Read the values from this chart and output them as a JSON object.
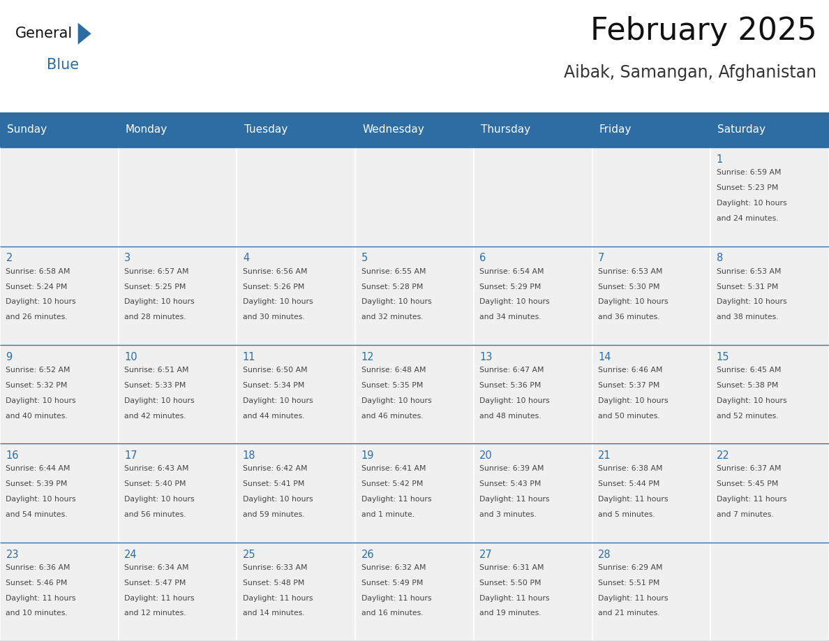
{
  "title": "February 2025",
  "subtitle": "Aibak, Samangan, Afghanistan",
  "header_color": "#2E6DA4",
  "header_text_color": "#FFFFFF",
  "cell_bg_color": "#F0F0F0",
  "border_color": "#2E6DA4",
  "day_number_color": "#2E6DA4",
  "text_color": "#444444",
  "days_of_week": [
    "Sunday",
    "Monday",
    "Tuesday",
    "Wednesday",
    "Thursday",
    "Friday",
    "Saturday"
  ],
  "weeks": [
    [
      {
        "day": "",
        "info": ""
      },
      {
        "day": "",
        "info": ""
      },
      {
        "day": "",
        "info": ""
      },
      {
        "day": "",
        "info": ""
      },
      {
        "day": "",
        "info": ""
      },
      {
        "day": "",
        "info": ""
      },
      {
        "day": "1",
        "info": "Sunrise: 6:59 AM\nSunset: 5:23 PM\nDaylight: 10 hours\nand 24 minutes."
      }
    ],
    [
      {
        "day": "2",
        "info": "Sunrise: 6:58 AM\nSunset: 5:24 PM\nDaylight: 10 hours\nand 26 minutes."
      },
      {
        "day": "3",
        "info": "Sunrise: 6:57 AM\nSunset: 5:25 PM\nDaylight: 10 hours\nand 28 minutes."
      },
      {
        "day": "4",
        "info": "Sunrise: 6:56 AM\nSunset: 5:26 PM\nDaylight: 10 hours\nand 30 minutes."
      },
      {
        "day": "5",
        "info": "Sunrise: 6:55 AM\nSunset: 5:28 PM\nDaylight: 10 hours\nand 32 minutes."
      },
      {
        "day": "6",
        "info": "Sunrise: 6:54 AM\nSunset: 5:29 PM\nDaylight: 10 hours\nand 34 minutes."
      },
      {
        "day": "7",
        "info": "Sunrise: 6:53 AM\nSunset: 5:30 PM\nDaylight: 10 hours\nand 36 minutes."
      },
      {
        "day": "8",
        "info": "Sunrise: 6:53 AM\nSunset: 5:31 PM\nDaylight: 10 hours\nand 38 minutes."
      }
    ],
    [
      {
        "day": "9",
        "info": "Sunrise: 6:52 AM\nSunset: 5:32 PM\nDaylight: 10 hours\nand 40 minutes."
      },
      {
        "day": "10",
        "info": "Sunrise: 6:51 AM\nSunset: 5:33 PM\nDaylight: 10 hours\nand 42 minutes."
      },
      {
        "day": "11",
        "info": "Sunrise: 6:50 AM\nSunset: 5:34 PM\nDaylight: 10 hours\nand 44 minutes."
      },
      {
        "day": "12",
        "info": "Sunrise: 6:48 AM\nSunset: 5:35 PM\nDaylight: 10 hours\nand 46 minutes."
      },
      {
        "day": "13",
        "info": "Sunrise: 6:47 AM\nSunset: 5:36 PM\nDaylight: 10 hours\nand 48 minutes."
      },
      {
        "day": "14",
        "info": "Sunrise: 6:46 AM\nSunset: 5:37 PM\nDaylight: 10 hours\nand 50 minutes."
      },
      {
        "day": "15",
        "info": "Sunrise: 6:45 AM\nSunset: 5:38 PM\nDaylight: 10 hours\nand 52 minutes."
      }
    ],
    [
      {
        "day": "16",
        "info": "Sunrise: 6:44 AM\nSunset: 5:39 PM\nDaylight: 10 hours\nand 54 minutes."
      },
      {
        "day": "17",
        "info": "Sunrise: 6:43 AM\nSunset: 5:40 PM\nDaylight: 10 hours\nand 56 minutes."
      },
      {
        "day": "18",
        "info": "Sunrise: 6:42 AM\nSunset: 5:41 PM\nDaylight: 10 hours\nand 59 minutes."
      },
      {
        "day": "19",
        "info": "Sunrise: 6:41 AM\nSunset: 5:42 PM\nDaylight: 11 hours\nand 1 minute."
      },
      {
        "day": "20",
        "info": "Sunrise: 6:39 AM\nSunset: 5:43 PM\nDaylight: 11 hours\nand 3 minutes."
      },
      {
        "day": "21",
        "info": "Sunrise: 6:38 AM\nSunset: 5:44 PM\nDaylight: 11 hours\nand 5 minutes."
      },
      {
        "day": "22",
        "info": "Sunrise: 6:37 AM\nSunset: 5:45 PM\nDaylight: 11 hours\nand 7 minutes."
      }
    ],
    [
      {
        "day": "23",
        "info": "Sunrise: 6:36 AM\nSunset: 5:46 PM\nDaylight: 11 hours\nand 10 minutes."
      },
      {
        "day": "24",
        "info": "Sunrise: 6:34 AM\nSunset: 5:47 PM\nDaylight: 11 hours\nand 12 minutes."
      },
      {
        "day": "25",
        "info": "Sunrise: 6:33 AM\nSunset: 5:48 PM\nDaylight: 11 hours\nand 14 minutes."
      },
      {
        "day": "26",
        "info": "Sunrise: 6:32 AM\nSunset: 5:49 PM\nDaylight: 11 hours\nand 16 minutes."
      },
      {
        "day": "27",
        "info": "Sunrise: 6:31 AM\nSunset: 5:50 PM\nDaylight: 11 hours\nand 19 minutes."
      },
      {
        "day": "28",
        "info": "Sunrise: 6:29 AM\nSunset: 5:51 PM\nDaylight: 11 hours\nand 21 minutes."
      },
      {
        "day": "",
        "info": ""
      }
    ]
  ],
  "fig_width": 11.88,
  "fig_height": 9.18,
  "dpi": 100
}
